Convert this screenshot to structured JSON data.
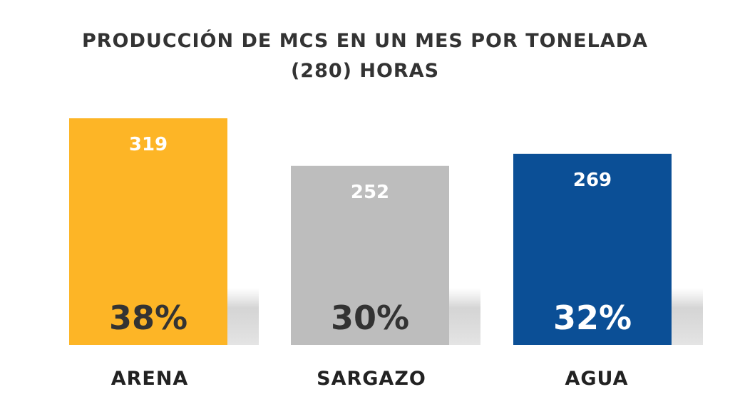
{
  "chart_data": {
    "type": "bar",
    "title_lines": [
      "PRODUCCIÓN DE MCS EN UN MES POR TONELADA",
      "(280) HORAS"
    ],
    "categories": [
      "ARENA",
      "SARGAZO",
      "AGUA"
    ],
    "values": [
      319,
      252,
      269
    ],
    "percent_labels": [
      "38%",
      "30%",
      "32%"
    ],
    "colors": [
      "#FDB526",
      "#BDBDBD",
      "#0B4F96"
    ],
    "percent_label_colors": [
      "#333333",
      "#333333",
      "#ffffff"
    ],
    "value_label_color": "#ffffff",
    "category_label_color": "#222222",
    "xlabel": "",
    "ylabel": "",
    "ylim": [
      0,
      319
    ],
    "grid": false,
    "legend": "none"
  }
}
